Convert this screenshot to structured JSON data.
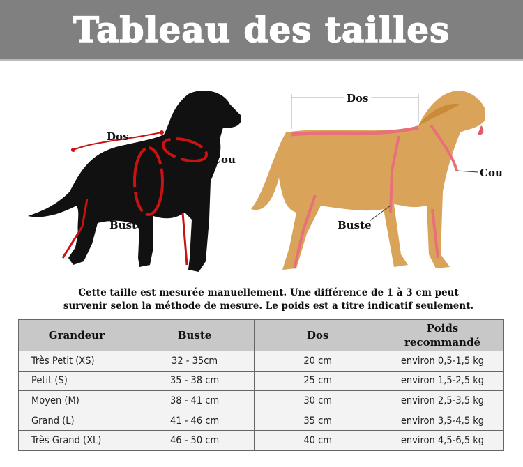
{
  "title": "Tableau des tailles",
  "diagram_left": {
    "dos": "Dos",
    "cou": "Cou",
    "buste": "Buste"
  },
  "diagram_right": {
    "dos": "Dos",
    "cou": "Cou",
    "buste": "Buste"
  },
  "note_line1": "Cette taille est mesurée manuellement. Une différence de 1 à 3 cm peut",
  "note_line2": "survenir selon la méthode de mesure. Le poids est a titre indicatif seulement.",
  "table": {
    "headers": [
      "Grandeur",
      "Buste",
      "Dos",
      "Poids recommandé"
    ],
    "rows": [
      [
        "Très Petit (XS)",
        "32 - 35cm",
        "20 cm",
        "environ 0,5-1,5 kg"
      ],
      [
        "Petit (S)",
        "35 - 38 cm",
        "25 cm",
        "environ 1,5-2,5 kg"
      ],
      [
        "Moyen (M)",
        "38 - 41 cm",
        "30 cm",
        "environ 2,5-3,5 kg"
      ],
      [
        "Grand (L)",
        "41 - 46 cm",
        "35 cm",
        "environ 3,5-4,5 kg"
      ],
      [
        "Très Grand (XL)",
        "46 - 50 cm",
        "40 cm",
        "environ 4,5-6,5 kg"
      ]
    ]
  },
  "colors": {
    "header_bg": "#808080",
    "measure_red": "#cc1111",
    "tape_pink": "#e8707a",
    "table_header_bg": "#c8c8c8"
  }
}
